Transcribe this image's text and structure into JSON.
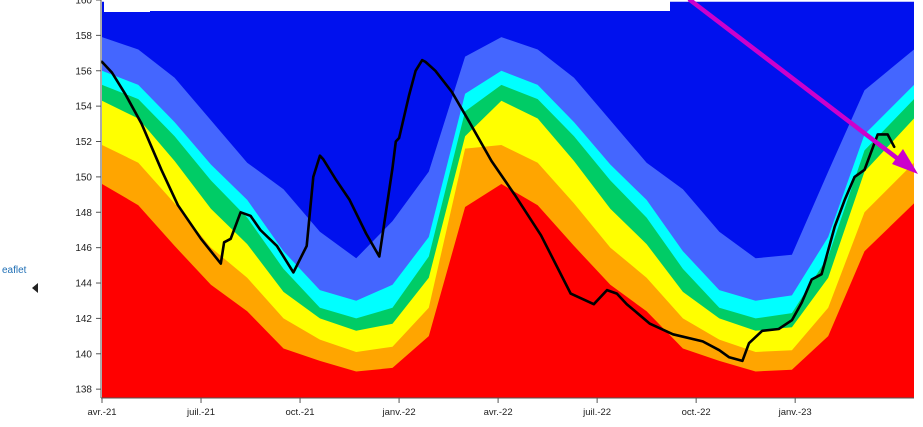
{
  "chart_data": {
    "type": "area",
    "title": "",
    "xlabel": "",
    "ylabel": "",
    "ylim": [
      137.5,
      160
    ],
    "yticks": [
      138,
      140,
      142,
      144,
      146,
      148,
      150,
      152,
      154,
      156,
      158,
      160
    ],
    "xticks": [
      "avr.-21",
      "juil.-21",
      "oct.-21",
      "janv.-22",
      "avr.-22",
      "juil.-22",
      "oct.-22",
      "janv.-23"
    ],
    "xlim_months": [
      0,
      24.6
    ],
    "grid": false,
    "legend": "none",
    "bands": [
      {
        "color": "#ff0000",
        "upper": [
          149.6,
          148.4,
          146.1,
          143.9,
          142.4,
          140.3,
          139.6,
          139.0,
          139.2,
          141.0,
          148.3,
          149.6,
          148.4,
          146.1,
          143.9,
          142.4,
          140.3,
          139.6,
          139.0,
          139.1,
          141.0,
          145.8,
          148.5
        ]
      },
      {
        "color": "#ffa500",
        "upper": [
          151.8,
          150.8,
          148.5,
          146.0,
          144.3,
          142.0,
          140.8,
          140.1,
          140.4,
          142.6,
          151.6,
          151.8,
          150.8,
          148.5,
          146.0,
          144.3,
          142.0,
          140.8,
          140.1,
          140.2,
          142.6,
          148.0,
          150.8
        ]
      },
      {
        "color": "#ffff00",
        "upper": [
          154.3,
          153.3,
          150.9,
          148.2,
          146.2,
          143.5,
          142.0,
          141.3,
          141.7,
          144.3,
          152.3,
          154.3,
          153.3,
          150.9,
          148.2,
          146.2,
          143.5,
          142.0,
          141.3,
          141.5,
          144.3,
          150.3,
          153.3
        ]
      },
      {
        "color": "#00cc66",
        "upper": [
          155.2,
          154.4,
          152.3,
          149.8,
          147.7,
          144.8,
          142.6,
          142.0,
          142.6,
          145.5,
          153.7,
          155.2,
          154.4,
          152.3,
          149.8,
          147.7,
          144.8,
          142.6,
          142.0,
          142.3,
          145.5,
          151.5,
          154.4
        ]
      },
      {
        "color": "#00ffff",
        "upper": [
          156.0,
          155.2,
          153.1,
          150.7,
          148.7,
          145.8,
          143.6,
          143.0,
          143.9,
          146.6,
          154.7,
          156.0,
          155.2,
          153.1,
          150.7,
          148.7,
          145.8,
          143.6,
          143.0,
          143.3,
          146.6,
          152.4,
          155.2
        ]
      },
      {
        "color": "#4466ff",
        "upper": [
          157.9,
          157.2,
          155.6,
          153.2,
          150.8,
          149.3,
          146.9,
          145.4,
          147.5,
          150.3,
          156.8,
          157.9,
          157.2,
          155.6,
          153.2,
          150.8,
          149.3,
          146.9,
          145.4,
          145.6,
          150.3,
          154.9,
          157.2
        ]
      },
      {
        "color": "#0011ee",
        "upper": [
          159.9,
          159.9,
          159.9,
          159.9,
          159.9,
          159.9,
          159.9,
          159.9,
          159.9,
          159.9,
          159.9,
          159.9,
          159.9,
          159.9,
          159.9,
          159.9,
          159.9,
          159.9,
          159.9,
          159.9,
          159.9,
          159.9,
          159.9
        ]
      }
    ],
    "band_x_months": [
      0,
      1.1,
      2.2,
      3.3,
      4.4,
      5.5,
      6.6,
      7.7,
      8.8,
      9.9,
      11.0,
      12.1,
      13.2,
      14.3,
      15.4,
      16.5,
      17.6,
      18.7,
      19.8,
      20.9,
      22.0,
      23.1,
      24.6
    ],
    "series": [
      {
        "color": "#000000",
        "x": [
          0,
          0.3,
          0.7,
          1.2,
          1.8,
          2.3,
          3.0,
          3.6,
          3.7,
          3.9,
          4.2,
          4.5,
          4.8,
          5.3,
          5.8,
          6.2,
          6.4,
          6.6,
          6.7,
          6.9,
          7.1,
          7.5,
          8.0,
          8.4,
          8.8,
          8.9,
          9.0,
          9.3,
          9.5,
          9.7,
          9.8,
          10.1,
          10.6,
          11.1,
          11.8,
          12.5,
          13.3,
          14.2,
          14.9,
          15.3,
          15.6,
          15.9,
          16.6,
          17.3,
          18.2,
          18.7,
          19.0,
          19.4,
          19.6,
          20.0,
          20.5,
          20.9,
          21.2,
          21.5,
          21.8,
          22.2,
          22.5,
          22.8,
          23.1,
          23.5,
          23.8,
          24.0
        ],
        "y": [
          156.5,
          155.9,
          154.7,
          153.0,
          150.4,
          148.4,
          146.5,
          145.1,
          146.3,
          146.5,
          148.0,
          147.8,
          147.0,
          146.1,
          144.6,
          146.1,
          150.0,
          151.2,
          151.0,
          150.4,
          149.8,
          148.7,
          146.8,
          145.5,
          150.5,
          152.0,
          152.2,
          154.6,
          156.0,
          156.6,
          156.5,
          156.0,
          154.8,
          153.2,
          150.9,
          149.0,
          146.7,
          143.4,
          142.8,
          143.6,
          143.4,
          142.8,
          141.7,
          141.1,
          140.7,
          140.2,
          139.8,
          139.6,
          140.6,
          141.3,
          141.4,
          141.9,
          142.9,
          144.2,
          144.5,
          147.2,
          148.7,
          150.0,
          150.4,
          152.4,
          152.4,
          151.7
        ]
      }
    ],
    "annotation_arrow_color": "#cc00cc",
    "attribution": "eaflet"
  }
}
